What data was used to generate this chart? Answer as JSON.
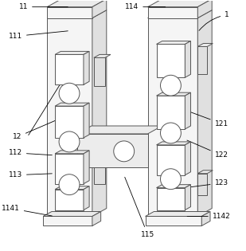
{
  "figure_size": [
    3.09,
    3.15
  ],
  "dpi": 100,
  "background_color": "#ffffff",
  "line_color": "#555555",
  "line_width": 0.7,
  "fill_front": "#f5f5f5",
  "fill_side": "#e0e0e0",
  "fill_top": "#ebebeb",
  "fill_dark": "#d0d0d0",
  "fill_white": "#ffffff",
  "rect_fill": "#e8e8e8"
}
